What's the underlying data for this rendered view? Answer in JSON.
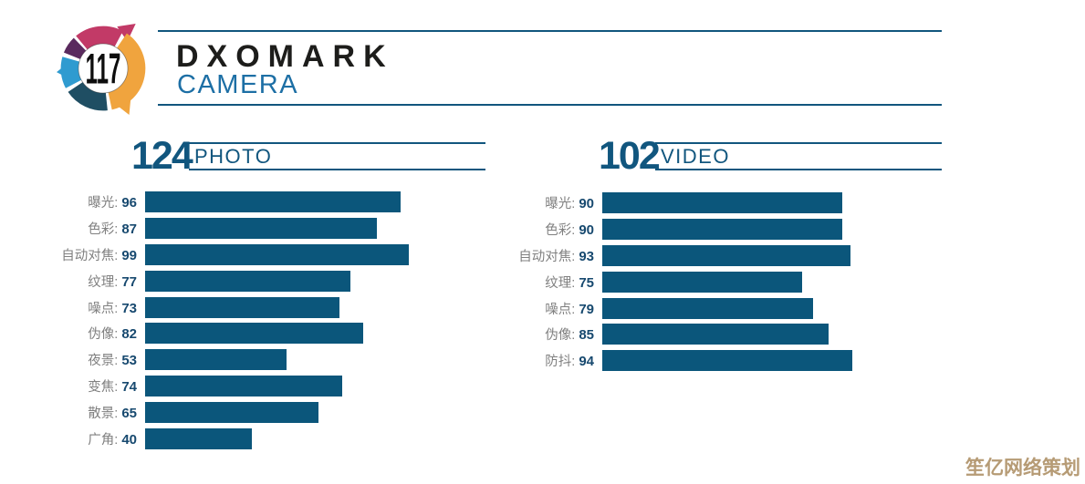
{
  "logo": {
    "score": "117",
    "brand": "DXOMARK",
    "product": "CAMERA"
  },
  "chart_data": [
    {
      "type": "bar",
      "title": "PHOTO",
      "overall_score": 124,
      "orientation": "horizontal",
      "categories": [
        "曝光",
        "色彩",
        "自动对焦",
        "纹理",
        "噪点",
        "伪像",
        "夜景",
        "变焦",
        "散景",
        "广角"
      ],
      "values": [
        96,
        87,
        99,
        77,
        73,
        82,
        53,
        74,
        65,
        40
      ],
      "xlim": [
        0,
        100
      ],
      "grid": false,
      "bar_color": "#0B567B"
    },
    {
      "type": "bar",
      "title": "VIDEO",
      "overall_score": 102,
      "orientation": "horizontal",
      "categories": [
        "曝光",
        "色彩",
        "自动对焦",
        "纹理",
        "噪点",
        "伪像",
        "防抖"
      ],
      "values": [
        90,
        90,
        93,
        75,
        79,
        85,
        94
      ],
      "xlim": [
        0,
        100
      ],
      "grid": false,
      "bar_color": "#0B567B"
    }
  ],
  "watermark": "笙亿网络策划",
  "colors": {
    "accent_blue": "#11567E",
    "bar": "#0B567B",
    "label_gray": "#808080",
    "number_navy": "#17496F",
    "brand_black": "#1D1D1B",
    "camera_blue": "#1D6FA5",
    "watermark_tan": "#B69B75",
    "logo_pink": "#C23A67",
    "logo_purple": "#5A2A5E",
    "logo_blue": "#2F9BD0",
    "logo_teal": "#1F4E63",
    "logo_orange": "#F0A43E"
  }
}
